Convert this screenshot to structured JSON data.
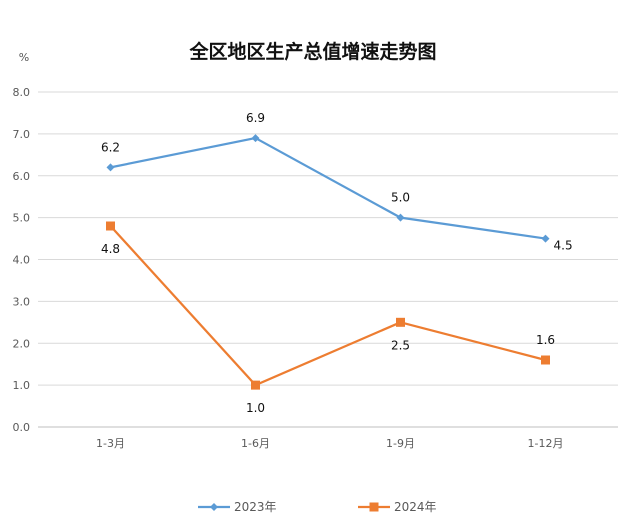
{
  "chart_data": {
    "type": "line",
    "title": "全区地区生产总值增速走势图",
    "ylabel": "%",
    "xlabel": "",
    "categories": [
      "1-3月",
      "1-6月",
      "1-9月",
      "1-12月"
    ],
    "ylim": [
      0,
      8
    ],
    "yticks": [
      "0.0",
      "1.0",
      "2.0",
      "3.0",
      "4.0",
      "5.0",
      "6.0",
      "7.0",
      "8.0"
    ],
    "grid": true,
    "legend_position": "bottom",
    "series": [
      {
        "name": "2023年",
        "values": [
          6.2,
          6.9,
          5.0,
          4.5
        ],
        "labels": [
          "6.2",
          "6.9",
          "5.0",
          "4.5"
        ],
        "color": "#5b9bd5",
        "marker": "diamond",
        "label_pos": [
          "above",
          "above",
          "above",
          "right"
        ]
      },
      {
        "name": "2024年",
        "values": [
          4.8,
          1.0,
          2.5,
          1.6
        ],
        "labels": [
          "4.8",
          "1.0",
          "2.5",
          "1.6"
        ],
        "color": "#ed7d31",
        "marker": "square",
        "label_pos": [
          "below",
          "below",
          "below",
          "above"
        ]
      }
    ]
  }
}
